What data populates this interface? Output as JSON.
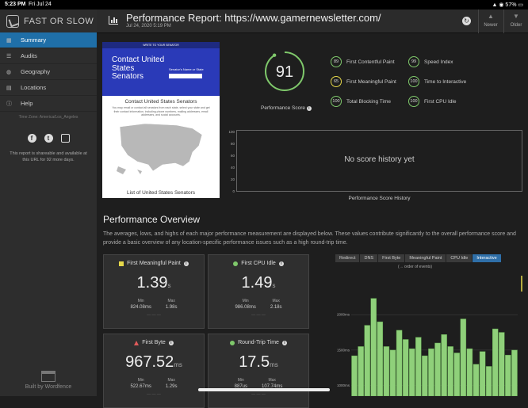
{
  "status_bar": {
    "time": "5:23 PM",
    "date": "Fri Jul 24",
    "battery": "57%"
  },
  "brand": {
    "name": "FAST OR SLOW"
  },
  "sidebar": {
    "items": [
      {
        "label": "Summary",
        "icon": "grid-icon",
        "glyph": "▦",
        "active": true
      },
      {
        "label": "Audits",
        "icon": "list-icon",
        "glyph": "☰",
        "active": false
      },
      {
        "label": "Geography",
        "icon": "globe-icon",
        "glyph": "◍",
        "active": false
      },
      {
        "label": "Locations",
        "icon": "server-icon",
        "glyph": "▤",
        "active": false
      },
      {
        "label": "Help",
        "icon": "info-icon",
        "glyph": "ⓘ",
        "active": false
      }
    ],
    "timezone": "Time Zone: America/Los_Angeles",
    "share_text": "This report is shareable and available at this URL for 92 more days.",
    "built_by": "Built by Wordfence"
  },
  "header": {
    "title": "Performance Report: https://www.gamernewsletter.com/",
    "date": "Jul 24, 2020 5:19 PM",
    "newer_label": "Newer",
    "older_label": "Older"
  },
  "thumbnail": {
    "top_bar": "WRITE TO YOUR SENATOR",
    "headline": "Contact United States Senators",
    "search_label": "Senator's Name or State",
    "content_title": "Contact United States Senators",
    "content_desc": "You may email or contact all senators from each state, select your state and get their contact information, including phone numbers, mailing addresses, email addresses, and social accounts.",
    "list_title": "List of United States Senators"
  },
  "score": {
    "value": 91,
    "label": "Performance Score",
    "fraction": 0.91
  },
  "metrics": [
    {
      "score": "89",
      "label": "First Contentful Paint",
      "color": "#7fc86b"
    },
    {
      "score": "99",
      "label": "Speed Index",
      "color": "#7fc86b"
    },
    {
      "score": "65",
      "label": "First Meaningful Paint",
      "color": "#e6d84a"
    },
    {
      "score": "100",
      "label": "Time to Interactive",
      "color": "#7fc86b"
    },
    {
      "score": "100",
      "label": "Total Blocking Time",
      "color": "#7fc86b"
    },
    {
      "score": "100",
      "label": "First CPU Idle",
      "color": "#7fc86b"
    }
  ],
  "history": {
    "message": "No score history yet",
    "caption": "Performance Score History",
    "y_ticks": [
      "100",
      "80",
      "60",
      "40",
      "20",
      "0"
    ]
  },
  "overview": {
    "title": "Performance Overview",
    "description": "The averages, lows, and highs of each major performance measurement are displayed below. These values contribute significantly to the overall performance score and provide a basic overview of any location-specific performance issues such as a high round-trip time."
  },
  "cards": [
    {
      "title": "First Meaningful Paint",
      "marker": "square",
      "value": "1.39",
      "unit": "s",
      "min": "824.08",
      "min_unit": "ms",
      "max": "1.98",
      "max_unit": "s"
    },
    {
      "title": "First CPU Idle",
      "marker": "dot",
      "value": "1.49",
      "unit": "s",
      "min": "986.08",
      "min_unit": "ms",
      "max": "2.18",
      "max_unit": "s"
    },
    {
      "title": "First Byte",
      "marker": "triangle",
      "value": "967.52",
      "unit": "ms",
      "min": "522.67",
      "min_unit": "ms",
      "max": "1.29",
      "max_unit": "s"
    },
    {
      "title": "Round-Trip Time",
      "marker": "dot",
      "value": "17.5",
      "unit": "ms",
      "min": "887",
      "min_unit": "us",
      "max": "107.74",
      "max_unit": "ms"
    }
  ],
  "waterfall": {
    "tabs": [
      "Redirect",
      "DNS",
      "First Byte",
      "Meaningful Paint",
      "CPU Idle",
      "Interactive"
    ],
    "active_tab": "Interactive",
    "order_note": "(→ order of events)"
  },
  "chart_data": {
    "type": "bar",
    "title": "",
    "ylabel": "",
    "y_ticks": [
      "2000ms",
      "1500ms",
      "1000ms"
    ],
    "ylim": [
      850,
      2550
    ],
    "values": [
      1420,
      1550,
      1850,
      2230,
      1900,
      1550,
      1500,
      1780,
      1650,
      1520,
      1680,
      1420,
      1520,
      1600,
      1720,
      1550,
      1460,
      1940,
      1520,
      1300,
      1480,
      1270,
      1800,
      1750,
      1430,
      1500
    ]
  }
}
